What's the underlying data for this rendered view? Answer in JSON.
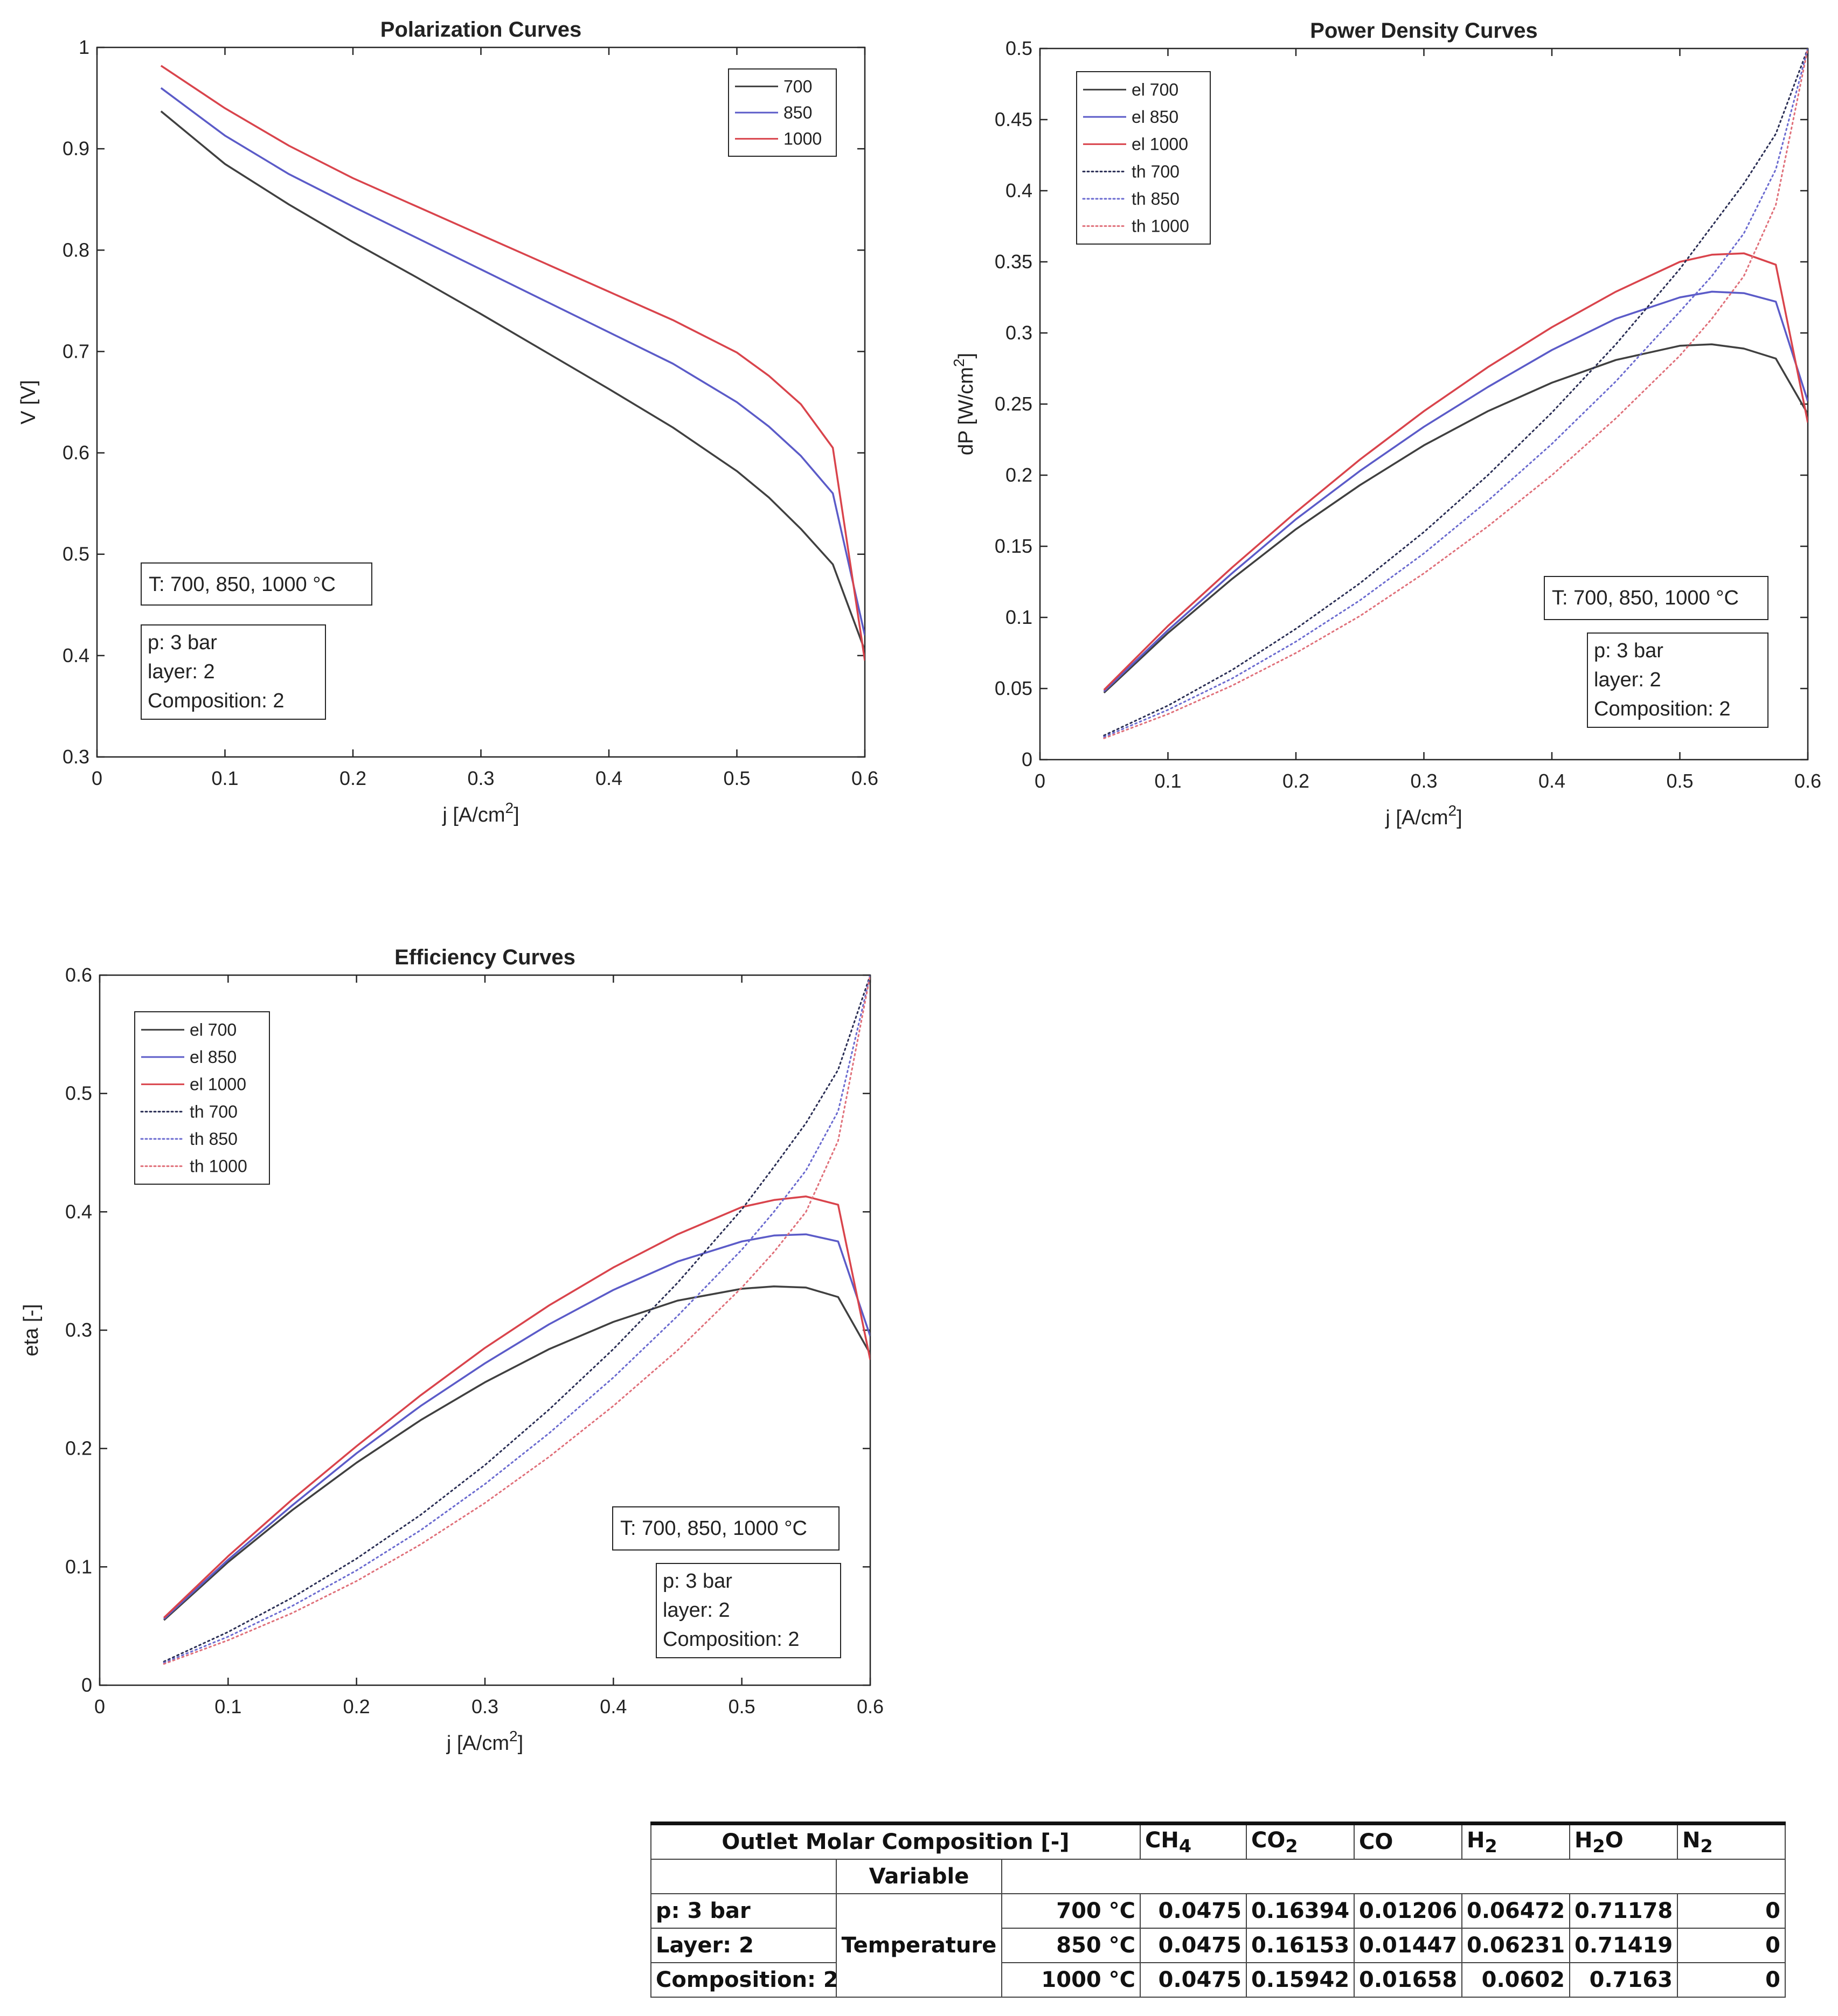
{
  "chart_data": [
    {
      "id": "polarization",
      "type": "line",
      "title": "Polarization Curves",
      "xlabel": "j [A/cm^2]",
      "ylabel": "V [V]",
      "xlim": [
        0,
        0.6
      ],
      "ylim": [
        0.3,
        1
      ],
      "xticks": [
        "0",
        "0.1",
        "0.2",
        "0.3",
        "0.4",
        "0.5",
        "0.6"
      ],
      "yticks": [
        "0.3",
        "0.4",
        "0.5",
        "0.6",
        "0.7",
        "0.8",
        "0.9",
        "1"
      ],
      "legend_position": "top-right",
      "x": [
        0.05,
        0.1,
        0.15,
        0.2,
        0.25,
        0.3,
        0.35,
        0.4,
        0.45,
        0.5,
        0.525,
        0.55,
        0.575,
        0.6
      ],
      "series": [
        {
          "name": "700",
          "color": "#404040",
          "style": "solid",
          "values": [
            0.937,
            0.885,
            0.845,
            0.808,
            0.773,
            0.737,
            0.7,
            0.663,
            0.625,
            0.582,
            0.556,
            0.525,
            0.49,
            0.405
          ]
        },
        {
          "name": "850",
          "color": "#5b5bc8",
          "style": "solid",
          "values": [
            0.96,
            0.913,
            0.875,
            0.843,
            0.812,
            0.781,
            0.75,
            0.719,
            0.688,
            0.65,
            0.626,
            0.597,
            0.56,
            0.42
          ]
        },
        {
          "name": "1000",
          "color": "#d9444c",
          "style": "solid",
          "values": [
            0.982,
            0.94,
            0.903,
            0.871,
            0.843,
            0.815,
            0.787,
            0.759,
            0.731,
            0.699,
            0.676,
            0.648,
            0.605,
            0.395
          ]
        }
      ],
      "annotations": {
        "temperature": "T: 700, 850, 1000 °C",
        "params": [
          "p: 3 bar",
          "layer: 2",
          "Composition: 2"
        ]
      }
    },
    {
      "id": "power-density",
      "type": "line",
      "title": "Power Density Curves",
      "xlabel": "j [A/cm^2]",
      "ylabel": "dP [W/cm^2]",
      "xlim": [
        0,
        0.6
      ],
      "ylim": [
        0,
        0.5
      ],
      "xticks": [
        "0",
        "0.1",
        "0.2",
        "0.3",
        "0.4",
        "0.5",
        "0.6"
      ],
      "yticks": [
        "0",
        "0.05",
        "0.1",
        "0.15",
        "0.2",
        "0.25",
        "0.3",
        "0.35",
        "0.4",
        "0.45",
        "0.5"
      ],
      "legend_position": "top-left",
      "x": [
        0.05,
        0.1,
        0.15,
        0.2,
        0.25,
        0.3,
        0.35,
        0.4,
        0.45,
        0.5,
        0.525,
        0.55,
        0.575,
        0.6
      ],
      "series": [
        {
          "name": "el 700",
          "color": "#404040",
          "style": "solid",
          "values": [
            0.047,
            0.089,
            0.127,
            0.162,
            0.193,
            0.221,
            0.245,
            0.265,
            0.281,
            0.291,
            0.292,
            0.289,
            0.282,
            0.243
          ]
        },
        {
          "name": "el 850",
          "color": "#5b5bc8",
          "style": "solid",
          "values": [
            0.048,
            0.091,
            0.131,
            0.169,
            0.203,
            0.234,
            0.262,
            0.288,
            0.31,
            0.325,
            0.329,
            0.328,
            0.322,
            0.252
          ]
        },
        {
          "name": "el 1000",
          "color": "#d9444c",
          "style": "solid",
          "values": [
            0.049,
            0.094,
            0.135,
            0.174,
            0.211,
            0.245,
            0.276,
            0.304,
            0.329,
            0.35,
            0.355,
            0.356,
            0.348,
            0.237
          ]
        },
        {
          "name": "th 700",
          "color": "#2b2f55",
          "style": "dotted",
          "values": [
            0.017,
            0.038,
            0.063,
            0.092,
            0.124,
            0.16,
            0.2,
            0.244,
            0.292,
            0.345,
            0.375,
            0.405,
            0.44,
            0.5
          ]
        },
        {
          "name": "th 850",
          "color": "#6b6bd0",
          "style": "dotted",
          "values": [
            0.016,
            0.035,
            0.057,
            0.083,
            0.112,
            0.145,
            0.182,
            0.222,
            0.266,
            0.315,
            0.34,
            0.37,
            0.415,
            0.5
          ]
        },
        {
          "name": "th 1000",
          "color": "#e0707a",
          "style": "dotted",
          "values": [
            0.015,
            0.032,
            0.052,
            0.075,
            0.101,
            0.131,
            0.164,
            0.2,
            0.24,
            0.284,
            0.31,
            0.34,
            0.39,
            0.5
          ]
        }
      ],
      "annotations": {
        "temperature": "T: 700, 850, 1000 °C",
        "params": [
          "p: 3 bar",
          "layer: 2",
          "Composition: 2"
        ]
      }
    },
    {
      "id": "efficiency",
      "type": "line",
      "title": "Efficiency Curves",
      "xlabel": "j [A/cm^2]",
      "ylabel": "eta [-]",
      "xlim": [
        0,
        0.6
      ],
      "ylim": [
        0,
        0.6
      ],
      "xticks": [
        "0",
        "0.1",
        "0.2",
        "0.3",
        "0.4",
        "0.5",
        "0.6"
      ],
      "yticks": [
        "0",
        "0.1",
        "0.2",
        "0.3",
        "0.4",
        "0.5",
        "0.6"
      ],
      "legend_position": "top-left",
      "x": [
        0.05,
        0.1,
        0.15,
        0.2,
        0.25,
        0.3,
        0.35,
        0.4,
        0.45,
        0.5,
        0.525,
        0.55,
        0.575,
        0.6
      ],
      "series": [
        {
          "name": "el 700",
          "color": "#404040",
          "style": "solid",
          "values": [
            0.055,
            0.104,
            0.148,
            0.188,
            0.224,
            0.256,
            0.284,
            0.307,
            0.325,
            0.335,
            0.337,
            0.336,
            0.328,
            0.28
          ]
        },
        {
          "name": "el 850",
          "color": "#5b5bc8",
          "style": "solid",
          "values": [
            0.056,
            0.106,
            0.152,
            0.196,
            0.236,
            0.272,
            0.305,
            0.334,
            0.358,
            0.375,
            0.38,
            0.381,
            0.375,
            0.295
          ]
        },
        {
          "name": "el 1000",
          "color": "#d9444c",
          "style": "solid",
          "values": [
            0.057,
            0.109,
            0.157,
            0.202,
            0.245,
            0.285,
            0.321,
            0.353,
            0.381,
            0.404,
            0.41,
            0.413,
            0.406,
            0.275
          ]
        },
        {
          "name": "th 700",
          "color": "#2b2f55",
          "style": "dotted",
          "values": [
            0.02,
            0.045,
            0.074,
            0.107,
            0.144,
            0.186,
            0.233,
            0.284,
            0.34,
            0.402,
            0.438,
            0.475,
            0.52,
            0.6
          ]
        },
        {
          "name": "th 850",
          "color": "#6b6bd0",
          "style": "dotted",
          "values": [
            0.019,
            0.041,
            0.067,
            0.097,
            0.131,
            0.17,
            0.213,
            0.26,
            0.312,
            0.368,
            0.4,
            0.435,
            0.485,
            0.6
          ]
        },
        {
          "name": "th 1000",
          "color": "#e0707a",
          "style": "dotted",
          "values": [
            0.018,
            0.038,
            0.061,
            0.088,
            0.119,
            0.154,
            0.193,
            0.236,
            0.283,
            0.336,
            0.366,
            0.4,
            0.46,
            0.6
          ]
        }
      ],
      "annotations": {
        "temperature": "T: 700, 850, 1000 °C",
        "params": [
          "p: 3 bar",
          "layer: 2",
          "Composition: 2"
        ]
      }
    }
  ],
  "table": {
    "title": "Outlet Molar Composition [-]",
    "columns": [
      "CH4",
      "CO2",
      "CO",
      "H2",
      "H2O",
      "N2"
    ],
    "variable_label": "Variable",
    "group_label": "Temperature",
    "row_labels": [
      "p: 3 bar",
      "Layer: 2",
      "Composition: 2"
    ],
    "rows": [
      {
        "temp": "700 °C",
        "values": [
          "0.0475",
          "0.16394",
          "0.01206",
          "0.06472",
          "0.71178",
          "0"
        ]
      },
      {
        "temp": "850 °C",
        "values": [
          "0.0475",
          "0.16153",
          "0.01447",
          "0.06231",
          "0.71419",
          "0"
        ]
      },
      {
        "temp": "1000 °C",
        "values": [
          "0.0475",
          "0.15942",
          "0.01658",
          "0.0602",
          "0.7163",
          "0"
        ]
      }
    ]
  }
}
